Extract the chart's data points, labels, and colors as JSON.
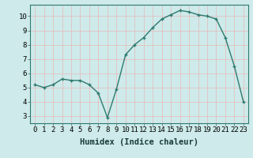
{
  "x": [
    0,
    1,
    2,
    3,
    4,
    5,
    6,
    7,
    8,
    9,
    10,
    11,
    12,
    13,
    14,
    15,
    16,
    17,
    18,
    19,
    20,
    21,
    22,
    23
  ],
  "y": [
    5.2,
    5.0,
    5.2,
    5.6,
    5.5,
    5.5,
    5.2,
    4.6,
    2.9,
    4.9,
    7.3,
    8.0,
    8.5,
    9.2,
    9.8,
    10.1,
    10.4,
    10.3,
    10.1,
    10.0,
    9.8,
    8.5,
    6.5,
    4.0
  ],
  "line_color": "#2d7a6e",
  "bg_color": "#ceeaea",
  "grid_color": "#b0d4d4",
  "xlabel": "Humidex (Indice chaleur)",
  "ylim": [
    2.5,
    10.8
  ],
  "xlim": [
    -0.5,
    23.5
  ],
  "yticks": [
    3,
    4,
    5,
    6,
    7,
    8,
    9,
    10
  ],
  "xticks": [
    0,
    1,
    2,
    3,
    4,
    5,
    6,
    7,
    8,
    9,
    10,
    11,
    12,
    13,
    14,
    15,
    16,
    17,
    18,
    19,
    20,
    21,
    22,
    23
  ],
  "xlabel_fontsize": 7.5,
  "tick_fontsize": 6.5,
  "linewidth": 1.0,
  "markersize": 2.5
}
